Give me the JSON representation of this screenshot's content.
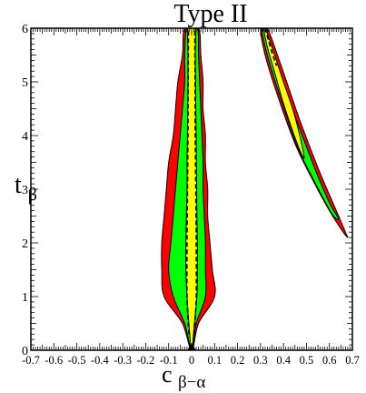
{
  "chart_data": {
    "type": "area",
    "title": "Type II",
    "xlabel": {
      "main": "c",
      "sub": "β−α"
    },
    "ylabel": {
      "main": "t",
      "sub": "β"
    },
    "xlim": [
      -0.7,
      0.7
    ],
    "ylim": [
      0,
      6
    ],
    "xticks": [
      -0.7,
      -0.6,
      -0.5,
      -0.4,
      -0.3,
      -0.2,
      -0.1,
      0,
      0.1,
      0.2,
      0.3,
      0.4,
      0.5,
      0.6,
      0.7
    ],
    "xtick_labels": [
      "-0.7",
      "-0.6",
      "-0.5",
      "-0.4",
      "-0.3",
      "-0.2",
      "-0.1",
      "0",
      "0.1",
      "0.2",
      "0.3",
      "0.4",
      "0.5",
      "0.6",
      "0.7"
    ],
    "yticks": [
      0,
      1,
      2,
      3,
      4,
      5,
      6
    ],
    "ytick_labels": [
      "0",
      "1",
      "2",
      "3",
      "4",
      "5",
      "6"
    ],
    "grid": false,
    "colors": {
      "outer": "#ff0000",
      "middle": "#00ff00",
      "inner": "#ffff00",
      "outline": "#000000"
    },
    "regions": [
      {
        "id": "left-outer",
        "fill_key": "outer",
        "points": [
          [
            0,
            0
          ],
          [
            -0.04,
            0.5
          ],
          [
            -0.12,
            1
          ],
          [
            -0.13,
            1.5
          ],
          [
            -0.13,
            2
          ],
          [
            -0.12,
            2.5
          ],
          [
            -0.11,
            3
          ],
          [
            -0.1,
            3.5
          ],
          [
            -0.08,
            4
          ],
          [
            -0.07,
            4.5
          ],
          [
            -0.06,
            5
          ],
          [
            -0.04,
            5.5
          ],
          [
            -0.03,
            6
          ],
          [
            0.03,
            6
          ],
          [
            0.04,
            5.5
          ],
          [
            0.05,
            5
          ],
          [
            0.05,
            4.5
          ],
          [
            0.06,
            4
          ],
          [
            0.06,
            3.5
          ],
          [
            0.07,
            3
          ],
          [
            0.07,
            2.5
          ],
          [
            0.08,
            2
          ],
          [
            0.09,
            1.5
          ],
          [
            0.1,
            1
          ],
          [
            0.03,
            0.5
          ]
        ]
      },
      {
        "id": "left-middle",
        "fill_key": "middle",
        "points": [
          [
            0,
            0
          ],
          [
            -0.03,
            0.5
          ],
          [
            -0.08,
            1
          ],
          [
            -0.1,
            1.5
          ],
          [
            -0.09,
            2
          ],
          [
            -0.08,
            2.5
          ],
          [
            -0.07,
            3
          ],
          [
            -0.06,
            3.5
          ],
          [
            -0.05,
            4
          ],
          [
            -0.04,
            4.5
          ],
          [
            -0.03,
            5
          ],
          [
            -0.03,
            5.5
          ],
          [
            -0.02,
            6
          ],
          [
            0.025,
            6
          ],
          [
            0.03,
            5.5
          ],
          [
            0.035,
            5
          ],
          [
            0.04,
            4.5
          ],
          [
            0.045,
            4
          ],
          [
            0.05,
            3.5
          ],
          [
            0.05,
            3
          ],
          [
            0.055,
            2.5
          ],
          [
            0.06,
            2
          ],
          [
            0.06,
            1.5
          ],
          [
            0.06,
            1
          ],
          [
            0.02,
            0.5
          ]
        ]
      },
      {
        "id": "left-inner",
        "fill_key": "inner",
        "points": [
          [
            0,
            0
          ],
          [
            -0.012,
            0.5
          ],
          [
            -0.02,
            1
          ],
          [
            -0.025,
            1.5
          ],
          [
            -0.025,
            2
          ],
          [
            -0.023,
            2.5
          ],
          [
            -0.02,
            3
          ],
          [
            -0.02,
            3.5
          ],
          [
            -0.018,
            4
          ],
          [
            -0.017,
            4.5
          ],
          [
            -0.016,
            5
          ],
          [
            -0.016,
            5.5
          ],
          [
            -0.015,
            6
          ],
          [
            0.015,
            6
          ],
          [
            0.016,
            5.5
          ],
          [
            0.017,
            5
          ],
          [
            0.018,
            4.5
          ],
          [
            0.02,
            4
          ],
          [
            0.021,
            3.5
          ],
          [
            0.022,
            3
          ],
          [
            0.023,
            2.5
          ],
          [
            0.025,
            2
          ],
          [
            0.025,
            1.5
          ],
          [
            0.023,
            1
          ],
          [
            0.012,
            0.5
          ]
        ]
      },
      {
        "id": "right-outer",
        "fill_key": "outer",
        "points": [
          [
            0.3,
            6
          ],
          [
            0.33,
            6
          ],
          [
            0.39,
            5.3
          ],
          [
            0.47,
            4.3
          ],
          [
            0.55,
            3.4
          ],
          [
            0.62,
            2.7
          ],
          [
            0.67,
            2.2
          ],
          [
            0.68,
            2.1
          ],
          [
            0.66,
            2.2
          ],
          [
            0.6,
            2.6
          ],
          [
            0.53,
            3.15
          ],
          [
            0.45,
            3.85
          ],
          [
            0.37,
            4.8
          ],
          [
            0.32,
            5.5
          ]
        ]
      },
      {
        "id": "right-middle",
        "fill_key": "middle",
        "points": [
          [
            0.305,
            6
          ],
          [
            0.32,
            6
          ],
          [
            0.38,
            5.2
          ],
          [
            0.46,
            4.25
          ],
          [
            0.54,
            3.35
          ],
          [
            0.6,
            2.75
          ],
          [
            0.64,
            2.45
          ],
          [
            0.61,
            2.55
          ],
          [
            0.54,
            3.1
          ],
          [
            0.46,
            3.8
          ],
          [
            0.38,
            4.8
          ],
          [
            0.33,
            5.5
          ]
        ]
      },
      {
        "id": "right-inner",
        "fill_key": "inner",
        "points": [
          [
            0.315,
            6
          ],
          [
            0.33,
            5.9
          ],
          [
            0.4,
            5
          ],
          [
            0.45,
            4.35
          ],
          [
            0.49,
            3.6
          ],
          [
            0.46,
            3.85
          ],
          [
            0.4,
            4.6
          ],
          [
            0.36,
            5.2
          ],
          [
            0.33,
            5.65
          ]
        ]
      }
    ],
    "dashed_lines": [
      {
        "id": "left-dash-a",
        "points": [
          [
            -0.012,
            0.3
          ],
          [
            -0.02,
            1
          ],
          [
            -0.02,
            2
          ],
          [
            -0.018,
            3
          ],
          [
            -0.016,
            4
          ],
          [
            -0.015,
            5
          ],
          [
            -0.014,
            6
          ]
        ]
      },
      {
        "id": "left-dash-b",
        "points": [
          [
            0.012,
            0.3
          ],
          [
            0.02,
            1
          ],
          [
            0.02,
            2
          ],
          [
            0.018,
            3
          ],
          [
            0.016,
            4
          ],
          [
            0.015,
            5
          ],
          [
            0.014,
            6
          ]
        ]
      },
      {
        "id": "right-dash",
        "points": [
          [
            0.32,
            6
          ],
          [
            0.33,
            5.85
          ],
          [
            0.35,
            5.55
          ],
          [
            0.37,
            5.3
          ]
        ]
      }
    ],
    "marker": {
      "x": 0,
      "y": 0,
      "symbol": "triangle"
    }
  }
}
